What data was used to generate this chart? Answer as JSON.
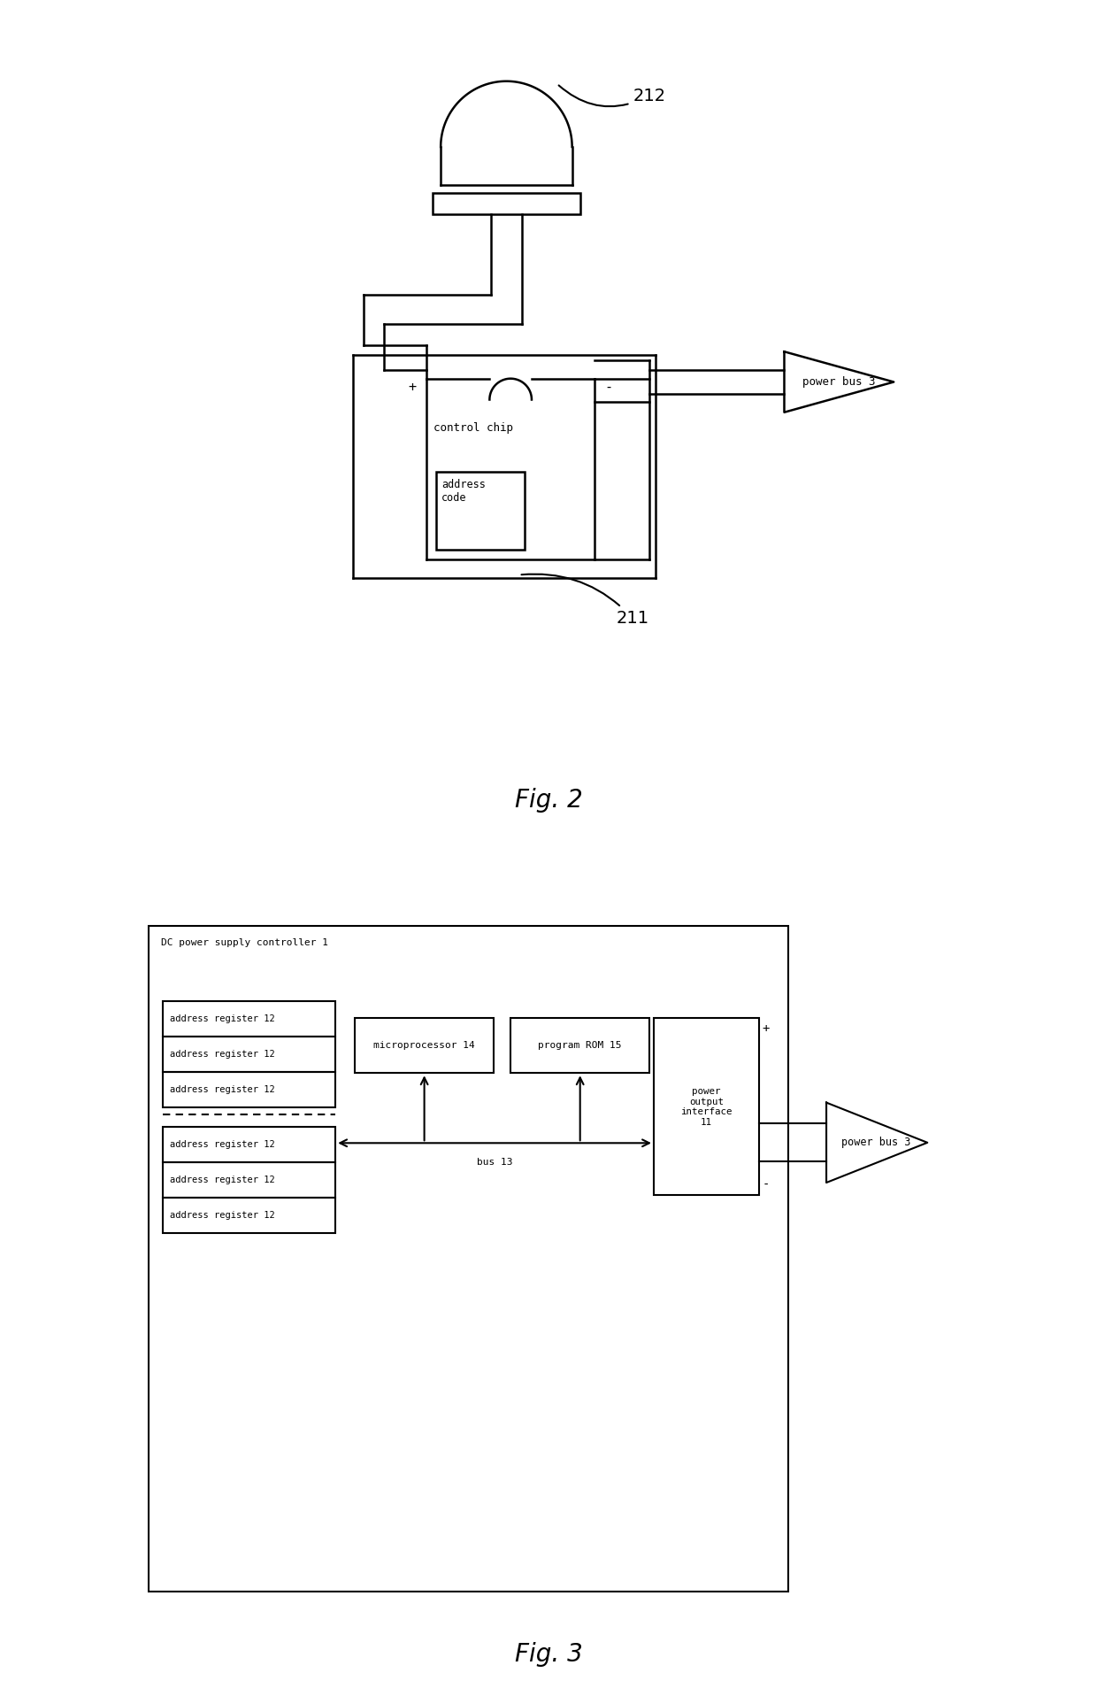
{
  "bg_color": "#ffffff",
  "line_color": "#000000",
  "fig2_label": "Fig. 2",
  "fig3_label": "Fig. 3",
  "label_212": "212",
  "label_211": "211",
  "label_control_chip": "control chip",
  "label_address_code": "address\ncode",
  "label_power_bus": "power bus 3",
  "label_dc_controller": "DC power supply controller 1",
  "label_microprocessor": "microprocessor 14",
  "label_program_rom": "program ROM 15",
  "label_power_output": "power\noutput\ninterface\n11",
  "label_bus": "bus 13",
  "label_power_bus3": "power bus 3",
  "label_addr_reg": "address register 12"
}
